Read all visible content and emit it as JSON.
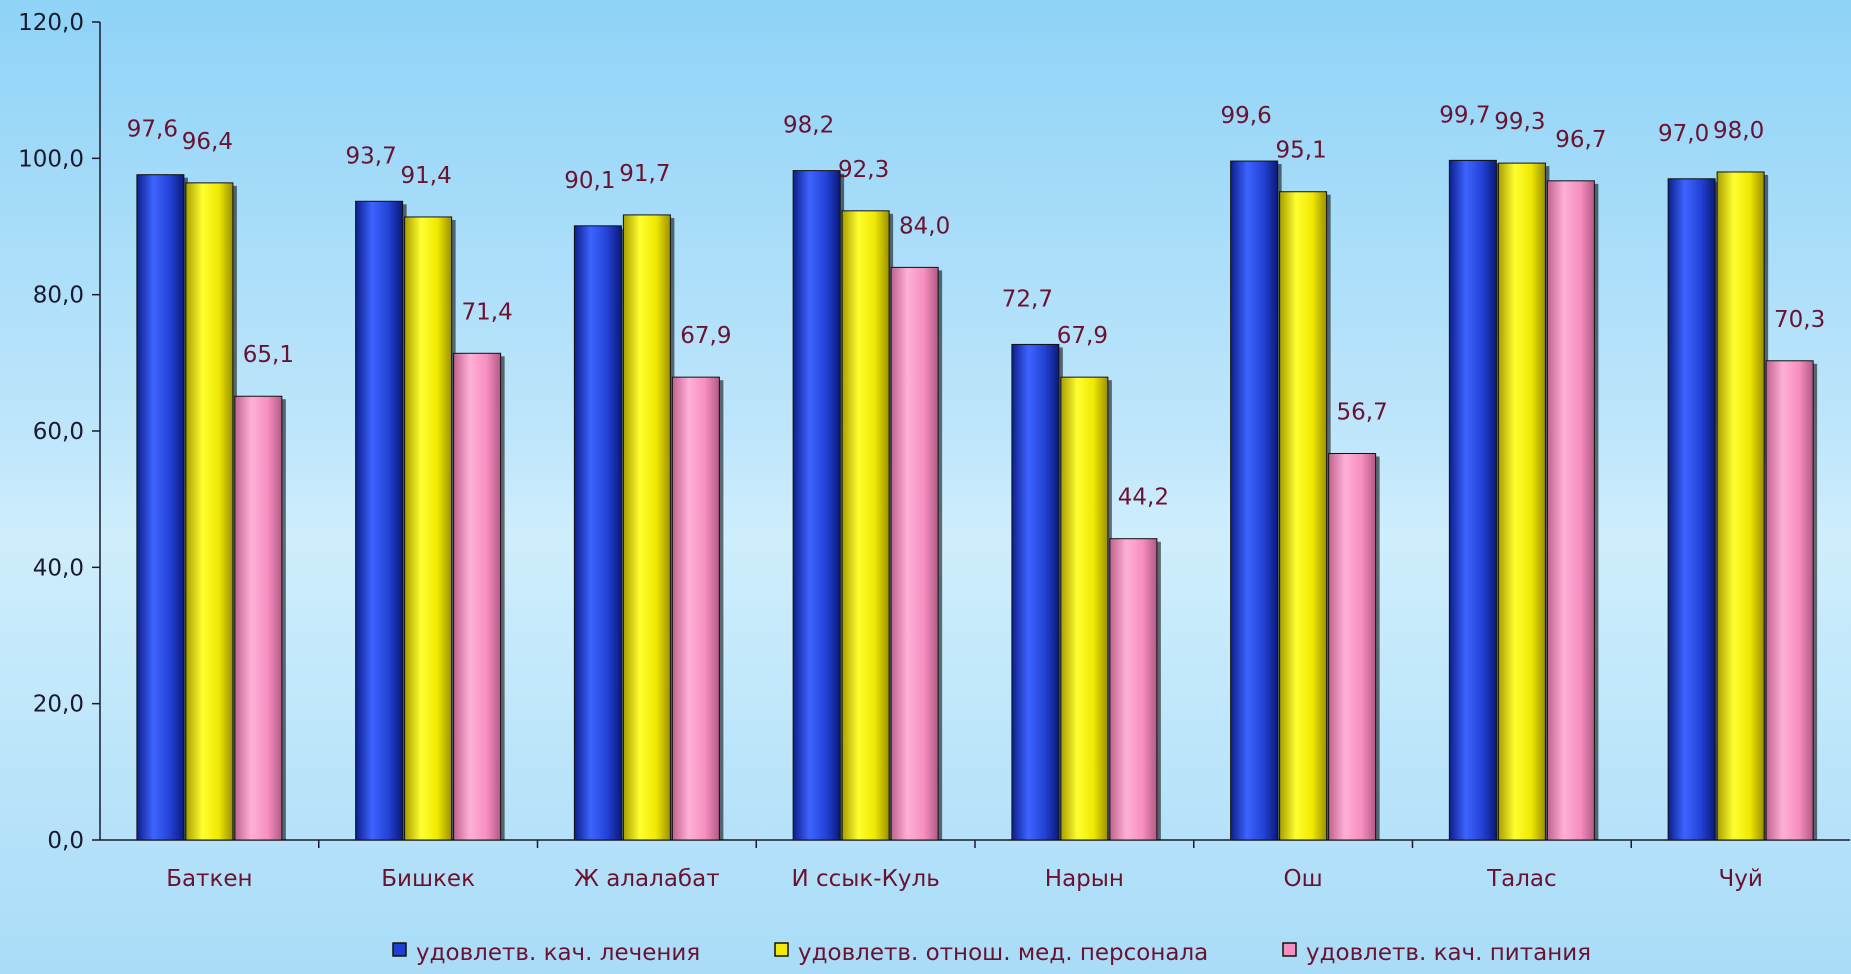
{
  "chart_data": {
    "type": "bar",
    "categories": [
      "Баткен",
      "Бишкек",
      "Ж алалабат",
      "И ссык-Куль",
      "Нарын",
      "Ош",
      "Талас",
      "Чуй"
    ],
    "series": [
      {
        "name": "удовлетв. кач. лечения",
        "color": "#1f3fcf",
        "values": [
          97.6,
          93.7,
          90.1,
          98.2,
          72.7,
          99.6,
          99.7,
          97.0
        ],
        "labels": [
          "97,6",
          "93,7",
          "90,1",
          "98,2",
          "72,7",
          "99,6",
          "99,7",
          "97,0"
        ]
      },
      {
        "name": "удовлетв. отнош. мед. персонала",
        "color": "#f2ea00",
        "values": [
          96.4,
          91.4,
          91.7,
          92.3,
          67.9,
          95.1,
          99.3,
          98.0
        ],
        "labels": [
          "96,4",
          "91,4",
          "91,7",
          "92,3",
          "67,9",
          "95,1",
          "99,3",
          "98,0"
        ]
      },
      {
        "name": "удовлетв. кач. питания",
        "color": "#f58fc0",
        "values": [
          65.1,
          71.4,
          67.9,
          84.0,
          44.2,
          56.7,
          96.7,
          70.3
        ],
        "labels": [
          "65,1",
          "71,4",
          "67,9",
          "84,0",
          "44,2",
          "56,7",
          "96,7",
          "70,3"
        ]
      }
    ],
    "ylim": [
      0,
      120
    ],
    "yticks": [
      "0,0",
      "20,0",
      "40,0",
      "60,0",
      "80,0",
      "100,0",
      "120,0"
    ],
    "grid": false,
    "legend_position": "bottom"
  }
}
